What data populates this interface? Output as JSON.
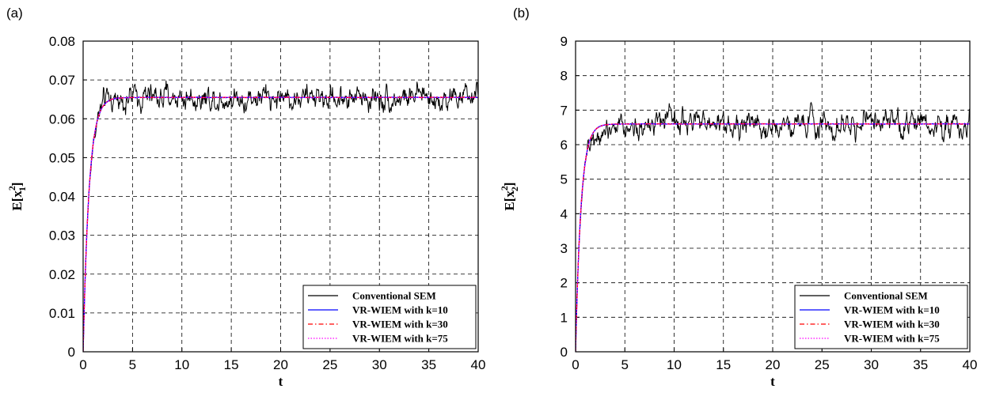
{
  "colors": {
    "conventional": "#000000",
    "k10": "#0000ff",
    "k30": "#ff0000",
    "k75": "#ff00ff"
  },
  "chart_data": [
    {
      "panel_label": "(a)",
      "type": "line",
      "xlabel": "t",
      "ylabel": "E[x_1^2]",
      "ylabel_parts": {
        "base": "E[x",
        "sub": "1",
        "sup": "2",
        "close": "]"
      },
      "xlim": [
        0,
        40
      ],
      "ylim": [
        0,
        0.08
      ],
      "xticks": [
        "0",
        "5",
        "10",
        "15",
        "20",
        "25",
        "30",
        "35",
        "40"
      ],
      "yticks": [
        "0",
        "0.01",
        "0.02",
        "0.03",
        "0.04",
        "0.05",
        "0.06",
        "0.07",
        "0.08"
      ],
      "grid": true,
      "legend_position": "bottom-right",
      "steady_state": 0.0655,
      "time_constant": 0.6,
      "noise_amplitude": 0.0045,
      "series": [
        {
          "name": "Conventional SEM",
          "style": "solid",
          "color_key": "conventional"
        },
        {
          "name": "VR-WIEM with k=10",
          "style": "solid",
          "color_key": "k10"
        },
        {
          "name": "VR-WIEM with k=30",
          "style": "dashdot",
          "color_key": "k30"
        },
        {
          "name": "VR-WIEM with k=75",
          "style": "dotted",
          "color_key": "k75"
        }
      ]
    },
    {
      "panel_label": "(b)",
      "type": "line",
      "xlabel": "t",
      "ylabel": "E[x_2^2]",
      "ylabel_parts": {
        "base": "E[x",
        "sub": "2",
        "sup": "2",
        "close": "]"
      },
      "xlim": [
        0,
        40
      ],
      "ylim": [
        0,
        9
      ],
      "xticks": [
        "0",
        "5",
        "10",
        "15",
        "20",
        "25",
        "30",
        "35",
        "40"
      ],
      "yticks": [
        "0",
        "1",
        "2",
        "3",
        "4",
        "5",
        "6",
        "7",
        "8",
        "9"
      ],
      "grid": true,
      "legend_position": "bottom-right",
      "steady_state": 6.6,
      "time_constant": 0.55,
      "noise_amplitude": 0.5,
      "series": [
        {
          "name": "Conventional SEM",
          "style": "solid",
          "color_key": "conventional"
        },
        {
          "name": "VR-WIEM with k=10",
          "style": "solid",
          "color_key": "k10"
        },
        {
          "name": "VR-WIEM with k=30",
          "style": "dashdot",
          "color_key": "k30"
        },
        {
          "name": "VR-WIEM with k=75",
          "style": "dotted",
          "color_key": "k75"
        }
      ]
    }
  ]
}
